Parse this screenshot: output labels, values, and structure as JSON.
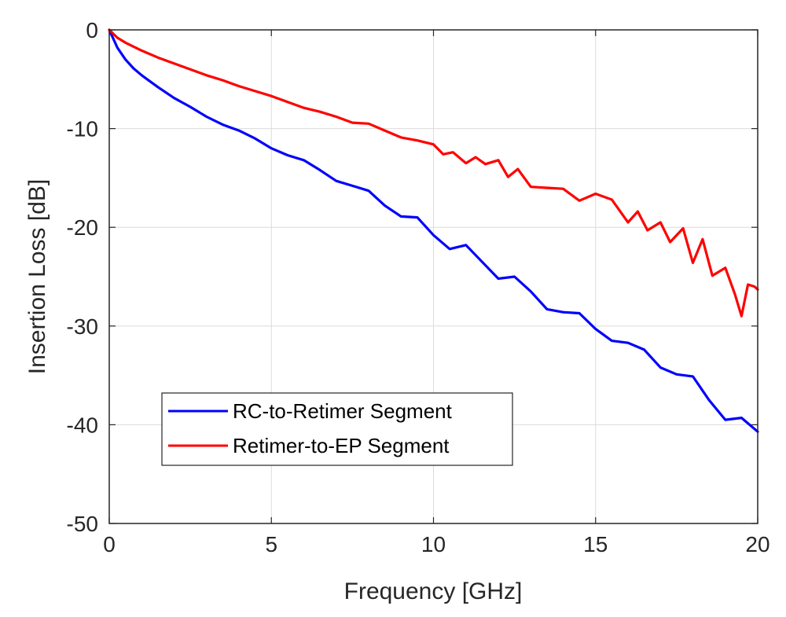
{
  "chart_data": {
    "type": "line",
    "xlabel": "Frequency [GHz]",
    "ylabel": "Insertion Loss [dB]",
    "xlim": [
      0,
      20
    ],
    "ylim": [
      -50,
      0
    ],
    "xticks": [
      0,
      5,
      10,
      15,
      20
    ],
    "yticks": [
      0,
      -10,
      -20,
      -30,
      -40,
      -50
    ],
    "xtick_labels": [
      "0",
      "5",
      "10",
      "15",
      "20"
    ],
    "ytick_labels": [
      "0",
      "-10",
      "-20",
      "-30",
      "-40",
      "-50"
    ],
    "grid": true,
    "legend_position": "lower-left",
    "series": [
      {
        "name": "RC-to-Retimer Segment",
        "color": "#0000ff",
        "x": [
          0,
          0.25,
          0.5,
          0.75,
          1,
          1.5,
          2,
          2.5,
          3,
          3.5,
          4,
          4.5,
          5,
          5.5,
          6,
          6.5,
          7,
          7.5,
          8,
          8.5,
          9,
          9.5,
          10,
          10.5,
          11,
          11.5,
          12,
          12.5,
          13,
          13.5,
          14,
          14.5,
          15,
          15.5,
          16,
          16.5,
          17,
          17.5,
          18,
          18.5,
          19,
          19.5,
          20
        ],
        "y": [
          0,
          -1.8,
          -3.0,
          -3.9,
          -4.6,
          -5.8,
          -6.9,
          -7.8,
          -8.8,
          -9.6,
          -10.2,
          -11.0,
          -12.0,
          -12.7,
          -13.2,
          -14.2,
          -15.3,
          -15.8,
          -16.3,
          -17.8,
          -18.9,
          -19.0,
          -20.8,
          -22.2,
          -21.8,
          -23.5,
          -25.2,
          -25.0,
          -26.5,
          -28.3,
          -28.6,
          -28.7,
          -30.3,
          -31.5,
          -31.7,
          -32.4,
          -34.2,
          -34.9,
          -35.1,
          -37.5,
          -39.5,
          -39.3,
          -40.7
        ]
      },
      {
        "name": "Retimer-to-EP Segment",
        "color": "#ff0000",
        "x": [
          0,
          0.25,
          0.5,
          1,
          1.5,
          2,
          2.5,
          3,
          3.5,
          4,
          4.5,
          5,
          5.5,
          6,
          6.5,
          7,
          7.5,
          8,
          8.5,
          9,
          9.5,
          10,
          10.3,
          10.6,
          11,
          11.3,
          11.6,
          12,
          12.3,
          12.6,
          13,
          13.5,
          14,
          14.5,
          15,
          15.5,
          16,
          16.3,
          16.6,
          17,
          17.3,
          17.7,
          18,
          18.3,
          18.6,
          19,
          19.3,
          19.5,
          19.7,
          19.9,
          20
        ],
        "y": [
          0,
          -0.8,
          -1.3,
          -2.1,
          -2.8,
          -3.4,
          -4.0,
          -4.6,
          -5.1,
          -5.7,
          -6.2,
          -6.7,
          -7.3,
          -7.9,
          -8.3,
          -8.8,
          -9.4,
          -9.5,
          -10.2,
          -10.9,
          -11.2,
          -11.6,
          -12.6,
          -12.4,
          -13.5,
          -12.9,
          -13.6,
          -13.2,
          -14.9,
          -14.1,
          -15.9,
          -16.0,
          -16.1,
          -17.3,
          -16.6,
          -17.2,
          -19.5,
          -18.4,
          -20.3,
          -19.5,
          -21.5,
          -20.1,
          -23.6,
          -21.2,
          -24.9,
          -24.1,
          -26.8,
          -29.0,
          -25.8,
          -26.0,
          -26.3
        ]
      }
    ]
  }
}
